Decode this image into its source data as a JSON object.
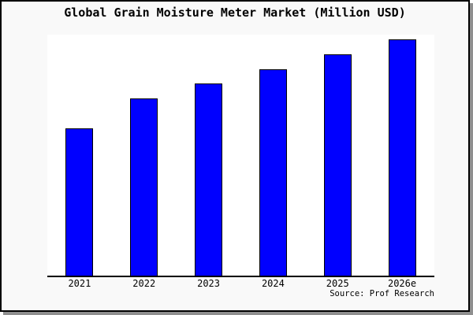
{
  "figure": {
    "title": "Global Grain Moisture Meter Market (Million USD)",
    "source_text": "Source: Prof Research"
  },
  "colors": {
    "bar_fill": "#0000ff",
    "bar_border": "#000000",
    "card_bg": "#f9f9f9",
    "card_border": "#000000",
    "plot_bg": "#ffffff",
    "axis": "#000000",
    "shadow": "#8f8f8f",
    "title_text": "#000000"
  },
  "chart_data": {
    "type": "bar",
    "title": "Global Grain Moisture Meter Market (Million USD)",
    "categories": [
      "2021",
      "2022",
      "2023",
      "2024",
      "2025",
      "2026e"
    ],
    "values": [
      100,
      120,
      130,
      140,
      150,
      160
    ],
    "values_estimated": true,
    "values_note": "No y-axis ticks shown; values are relative, scaled to 2021 = 100 from measured bar heights",
    "xlabel": "",
    "ylabel": "",
    "ylim": [
      0,
      163.2
    ],
    "grid": false,
    "legend": false,
    "annotations": [
      "Source: Prof Research"
    ]
  }
}
